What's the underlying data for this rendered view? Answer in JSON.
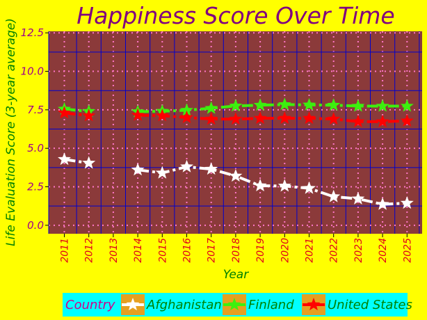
{
  "colors": {
    "page_background": "#ffff00",
    "plot_background": "#8b3a3a",
    "major_grid": "#0000cd",
    "minor_grid": "#ff77c8",
    "legend_background": "#00ffff"
  },
  "chart_data": {
    "type": "line",
    "title": "Happiness Score Over Time",
    "xlabel": "Year",
    "ylabel": "Life Evaluation Score (3-year average)",
    "categories": [
      "2011",
      "2012",
      "2013",
      "2014",
      "2015",
      "2016",
      "2017",
      "2018",
      "2019",
      "2020",
      "2021",
      "2022",
      "2023",
      "2024",
      "2025"
    ],
    "ylim": [
      -0.55,
      12.6
    ],
    "yticks": [
      0.0,
      2.5,
      5.0,
      7.5,
      10.0,
      12.5
    ],
    "ytick_labels": [
      "0.0",
      "2.5",
      "5.0",
      "7.5",
      "10.0",
      "12.5"
    ],
    "grid": true,
    "marker": "star",
    "legend": {
      "title": "Country",
      "placement": "bottom-right"
    },
    "series": [
      {
        "name": "Afghanistan",
        "color": "#ffffff",
        "values": [
          4.28,
          4.04,
          null,
          3.6,
          3.4,
          3.8,
          3.65,
          3.2,
          2.57,
          2.55,
          2.4,
          1.86,
          1.72,
          1.36,
          1.44
        ]
      },
      {
        "name": "Finland",
        "color": "#3cf00e",
        "values": [
          7.55,
          7.4,
          null,
          7.38,
          7.41,
          7.47,
          7.6,
          7.75,
          7.8,
          7.84,
          7.82,
          7.8,
          7.74,
          7.74,
          7.74
        ]
      },
      {
        "name": "United States",
        "color": "#ff0000",
        "values": [
          7.3,
          7.12,
          null,
          7.15,
          7.12,
          7.0,
          6.9,
          6.9,
          6.95,
          6.95,
          6.95,
          6.9,
          6.73,
          6.73,
          6.78
        ]
      }
    ]
  }
}
